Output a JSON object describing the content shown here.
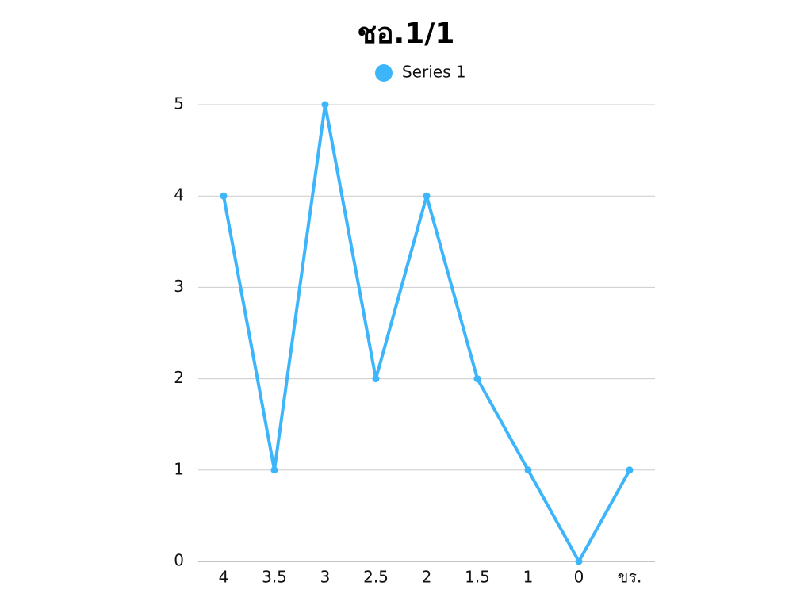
{
  "chart_data": {
    "type": "line",
    "title": "ชอ.1/1",
    "categories": [
      "4",
      "3.5",
      "3",
      "2.5",
      "2",
      "1.5",
      "1",
      "0",
      "ขร."
    ],
    "series": [
      {
        "name": "Series 1",
        "color": "#3db5fa",
        "values": [
          4,
          1,
          5,
          2,
          4,
          2,
          1,
          0,
          1
        ]
      }
    ],
    "ylim": [
      0,
      5
    ],
    "yticks": [
      0,
      1,
      2,
      3,
      4,
      5
    ],
    "grid": true,
    "legend": "top"
  }
}
